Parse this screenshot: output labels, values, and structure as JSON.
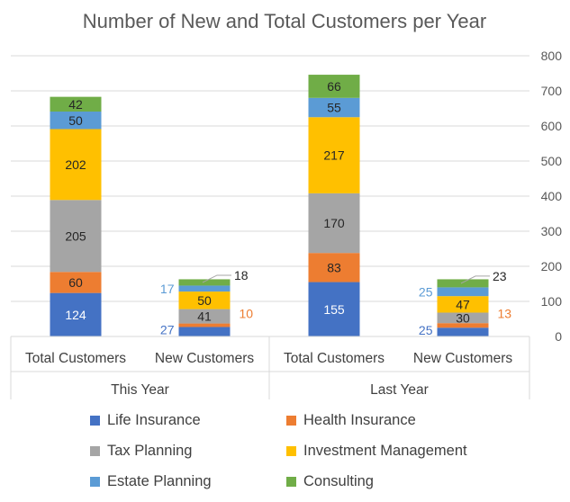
{
  "chart_data": {
    "type": "bar",
    "stacked": true,
    "title": "Number of New and Total Customers per Year",
    "ylim": [
      0,
      800
    ],
    "yticks": [
      0,
      100,
      200,
      300,
      400,
      500,
      600,
      700,
      800
    ],
    "y_axis_side": "right",
    "grid": true,
    "legend_position": "bottom",
    "groups": [
      {
        "label": "This Year",
        "categories": [
          "Total Customers",
          "New Customers"
        ]
      },
      {
        "label": "Last Year",
        "categories": [
          "Total Customers",
          "New Customers"
        ]
      }
    ],
    "categories": [
      "Total Customers",
      "New Customers",
      "Total Customers",
      "New Customers"
    ],
    "series": [
      {
        "name": "Life Insurance",
        "color": "#4472C4",
        "values": [
          124,
          27,
          155,
          25
        ]
      },
      {
        "name": "Health Insurance",
        "color": "#ED7D31",
        "values": [
          60,
          10,
          83,
          13
        ]
      },
      {
        "name": "Tax Planning",
        "color": "#A5A5A5",
        "values": [
          205,
          41,
          170,
          30
        ]
      },
      {
        "name": "Investment Management",
        "color": "#FFC000",
        "values": [
          202,
          50,
          217,
          47
        ]
      },
      {
        "name": "Estate Planning",
        "color": "#5B9BD5",
        "values": [
          50,
          17,
          55,
          25
        ]
      },
      {
        "name": "Consulting",
        "color": "#70AD47",
        "values": [
          42,
          18,
          66,
          23
        ]
      }
    ]
  }
}
